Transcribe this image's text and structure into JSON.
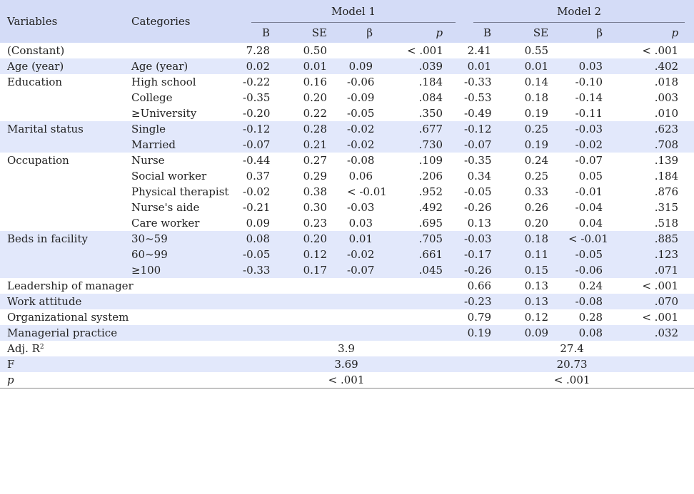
{
  "headers": {
    "variables": "Variables",
    "categories": "Categories",
    "model1": "Model 1",
    "model2": "Model 2",
    "b": "B",
    "se": "SE",
    "beta": "β",
    "p": "p"
  },
  "rows": [
    {
      "var": "(Constant)",
      "cats": [
        ""
      ],
      "m1": {
        "b": [
          "7.28"
        ],
        "se": [
          "0.50"
        ],
        "beta": [
          ""
        ],
        "p": [
          "< .001"
        ]
      },
      "m2": {
        "b": [
          "2.41"
        ],
        "se": [
          "0.55"
        ],
        "beta": [
          ""
        ],
        "p": [
          "< .001"
        ]
      }
    },
    {
      "var": "Age (year)",
      "cats": [
        "Age (year)"
      ],
      "m1": {
        "b": [
          "0.02"
        ],
        "se": [
          "0.01"
        ],
        "beta": [
          "0.09"
        ],
        "p": [
          ".039"
        ]
      },
      "m2": {
        "b": [
          "0.01"
        ],
        "se": [
          "0.01"
        ],
        "beta": [
          "0.03"
        ],
        "p": [
          ".402"
        ]
      }
    },
    {
      "var": "Education",
      "cats": [
        "High school",
        "College",
        "≥University"
      ],
      "m1": {
        "b": [
          "-0.22",
          "-0.35",
          "-0.20"
        ],
        "se": [
          "0.16",
          "0.20",
          "0.22"
        ],
        "beta": [
          "-0.06",
          "-0.09",
          "-0.05"
        ],
        "p": [
          ".184",
          ".084",
          ".350"
        ]
      },
      "m2": {
        "b": [
          "-0.33",
          "-0.53",
          "-0.49"
        ],
        "se": [
          "0.14",
          "0.18",
          "0.19"
        ],
        "beta": [
          "-0.10",
          "-0.14",
          "-0.11"
        ],
        "p": [
          ".018",
          ".003",
          ".010"
        ]
      }
    },
    {
      "var": "Marital status",
      "cats": [
        "Single",
        "Married"
      ],
      "m1": {
        "b": [
          "-0.12",
          "-0.07"
        ],
        "se": [
          "0.28",
          "0.21"
        ],
        "beta": [
          "-0.02",
          "-0.02"
        ],
        "p": [
          ".677",
          ".730"
        ]
      },
      "m2": {
        "b": [
          "-0.12",
          "-0.07"
        ],
        "se": [
          "0.25",
          "0.19"
        ],
        "beta": [
          "-0.03",
          "-0.02"
        ],
        "p": [
          ".623",
          ".708"
        ]
      }
    },
    {
      "var": "Occupation",
      "cats": [
        "Nurse",
        "Social worker",
        "Physical therapist",
        "Nurse's aide",
        "Care worker"
      ],
      "m1": {
        "b": [
          "-0.44",
          "0.37",
          "-0.02",
          "-0.21",
          "0.09"
        ],
        "se": [
          "0.27",
          "0.29",
          "0.38",
          "0.30",
          "0.23"
        ],
        "beta": [
          "-0.08",
          "0.06",
          "< -0.01",
          "-0.03",
          "0.03"
        ],
        "p": [
          ".109",
          ".206",
          ".952",
          ".492",
          ".695"
        ]
      },
      "m2": {
        "b": [
          "-0.35",
          "0.34",
          "-0.05",
          "-0.26",
          "0.13"
        ],
        "se": [
          "0.24",
          "0.25",
          "0.33",
          "0.26",
          "0.20"
        ],
        "beta": [
          "-0.07",
          "0.05",
          "-0.01",
          "-0.04",
          "0.04"
        ],
        "p": [
          ".139",
          ".184",
          ".876",
          ".315",
          ".518"
        ]
      }
    },
    {
      "var": "Beds in facility",
      "cats": [
        "30~59",
        "60~99",
        "≥100"
      ],
      "m1": {
        "b": [
          "0.08",
          "-0.05",
          "-0.33"
        ],
        "se": [
          "0.20",
          "0.12",
          "0.17"
        ],
        "beta": [
          "0.01",
          "-0.02",
          "-0.07"
        ],
        "p": [
          ".705",
          ".661",
          ".045"
        ]
      },
      "m2": {
        "b": [
          "-0.03",
          "-0.17",
          "-0.26"
        ],
        "se": [
          "0.18",
          "0.11",
          "0.15"
        ],
        "beta": [
          "< -0.01",
          "-0.05",
          "-0.06"
        ],
        "p": [
          ".885",
          ".123",
          ".071"
        ]
      }
    },
    {
      "var": "Leadership of manager",
      "cats": [],
      "m1": {
        "b": [
          ""
        ],
        "se": [
          ""
        ],
        "beta": [
          ""
        ],
        "p": [
          ""
        ]
      },
      "m2": {
        "b": [
          "0.66"
        ],
        "se": [
          "0.13"
        ],
        "beta": [
          "0.24"
        ],
        "p": [
          "< .001"
        ]
      }
    },
    {
      "var": "Work attitude",
      "cats": [],
      "m1": {
        "b": [
          ""
        ],
        "se": [
          ""
        ],
        "beta": [
          ""
        ],
        "p": [
          ""
        ]
      },
      "m2": {
        "b": [
          "-0.23"
        ],
        "se": [
          "0.13"
        ],
        "beta": [
          "-0.08"
        ],
        "p": [
          ".070"
        ]
      }
    },
    {
      "var": "Organizational system",
      "cats": [],
      "m1": {
        "b": [
          ""
        ],
        "se": [
          ""
        ],
        "beta": [
          ""
        ],
        "p": [
          ""
        ]
      },
      "m2": {
        "b": [
          "0.79"
        ],
        "se": [
          "0.12"
        ],
        "beta": [
          "0.28"
        ],
        "p": [
          "< .001"
        ]
      }
    },
    {
      "var": "Managerial practice",
      "cats": [],
      "m1": {
        "b": [
          ""
        ],
        "se": [
          ""
        ],
        "beta": [
          ""
        ],
        "p": [
          ""
        ]
      },
      "m2": {
        "b": [
          "0.19"
        ],
        "se": [
          "0.09"
        ],
        "beta": [
          "0.08"
        ],
        "p": [
          ".032"
        ]
      }
    }
  ],
  "summary": [
    {
      "label": "Adj. R",
      "sup": "2",
      "m1": "3.9",
      "m2": "27.4",
      "italic": false
    },
    {
      "label": "F",
      "sup": "",
      "m1": "3.69",
      "m2": "20.73",
      "italic": false
    },
    {
      "label": "p",
      "sup": "",
      "m1": "< .001",
      "m2": "< .001",
      "italic": true
    }
  ]
}
